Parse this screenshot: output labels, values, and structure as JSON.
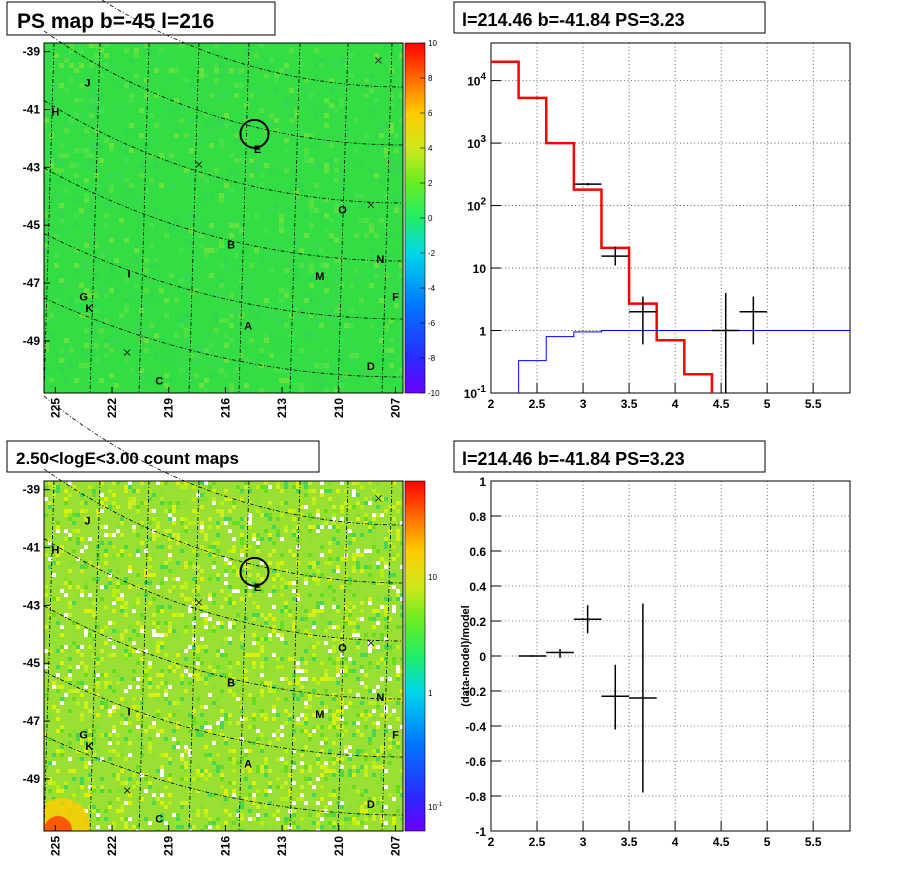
{
  "panels": {
    "ps_map": {
      "title": "PS map b=-45 l=216",
      "y_ticks": [
        "-39",
        "-41",
        "-43",
        "-45",
        "-47",
        "-49"
      ],
      "x_ticks": [
        "225",
        "222",
        "219",
        "216",
        "213",
        "210",
        "207"
      ],
      "colorbar_ticks": [
        "10",
        "8",
        "6",
        "4",
        "2",
        "0",
        "-2",
        "-4",
        "-6",
        "-8",
        "-10"
      ],
      "colors": {
        "background": "#33dd44",
        "ring": "#000000"
      }
    },
    "count_map": {
      "title": "2.50<logE<3.00 count maps",
      "y_ticks": [
        "-39",
        "-41",
        "-43",
        "-45",
        "-47",
        "-49"
      ],
      "x_ticks": [
        "225",
        "222",
        "219",
        "216",
        "213",
        "210",
        "207"
      ],
      "colorbar_ticks": [
        "10",
        "1",
        "10"
      ],
      "colorbar_tick_exp": "-1"
    },
    "spectrum": {
      "title": "l=214.46 b=-41.84 PS=3.23",
      "y_ticks": [
        {
          "base": "10",
          "exp": "4"
        },
        {
          "base": "10",
          "exp": "3"
        },
        {
          "base": "10",
          "exp": "2"
        },
        {
          "base": "10",
          "exp": ""
        },
        {
          "base": "1",
          "exp": ""
        },
        {
          "base": "10",
          "exp": "-1"
        }
      ],
      "x_ticks": [
        "2",
        "2.5",
        "3",
        "3.5",
        "4",
        "4.5",
        "5",
        "5.5"
      ]
    },
    "residual": {
      "title": "l=214.46 b=-41.84 PS=3.23",
      "ylabel": "(data-model)/model",
      "y_ticks": [
        "1",
        "0.8",
        "0.6",
        "0.4",
        "0.2",
        "0",
        "-0.2",
        "-0.4",
        "-0.6",
        "-0.8",
        "-1"
      ],
      "x_ticks": [
        "2",
        "2.5",
        "3",
        "3.5",
        "4",
        "4.5",
        "5",
        "5.5"
      ]
    }
  },
  "sky_labels": [
    {
      "text": "J",
      "l": 223.3,
      "b": -40.2
    },
    {
      "text": "H",
      "l": 225.0,
      "b": -41.2
    },
    {
      "text": "E",
      "l": 214.3,
      "b": -42.5
    },
    {
      "text": "O",
      "l": 209.8,
      "b": -44.6
    },
    {
      "text": "B",
      "l": 215.7,
      "b": -45.8
    },
    {
      "text": "N",
      "l": 207.8,
      "b": -46.3
    },
    {
      "text": "I",
      "l": 221.1,
      "b": -46.8
    },
    {
      "text": "M",
      "l": 211.0,
      "b": -46.9
    },
    {
      "text": "G",
      "l": 223.5,
      "b": -47.6
    },
    {
      "text": "F",
      "l": 207.0,
      "b": -47.6
    },
    {
      "text": "K",
      "l": 223.2,
      "b": -48.0
    },
    {
      "text": "A",
      "l": 214.8,
      "b": -48.6
    },
    {
      "text": "D",
      "l": 208.3,
      "b": -50.0
    },
    {
      "text": "C",
      "l": 219.5,
      "b": -50.5
    }
  ],
  "sky_crosses": [
    {
      "l": 207.9,
      "b": -39.3
    },
    {
      "l": 217.4,
      "b": -42.9
    },
    {
      "l": 208.3,
      "b": -44.3
    },
    {
      "l": 221.2,
      "b": -49.4
    }
  ],
  "source_ring": {
    "l": 214.46,
    "b": -41.84
  },
  "chart_data": [
    {
      "type": "heatmap",
      "title": "PS map b=-45 l=216",
      "xlabel": "",
      "ylabel": "",
      "xlim": [
        225.6,
        206.6
      ],
      "ylim": [
        -50.8,
        -38.7
      ],
      "colorbar_range": [
        -10,
        10
      ],
      "marked_source": {
        "l": 214.46,
        "b": -41.84
      }
    },
    {
      "type": "heatmap",
      "title": "2.50<logE<3.00 count maps",
      "xlabel": "",
      "ylabel": "",
      "xlim": [
        225.6,
        206.6
      ],
      "ylim": [
        -50.8,
        -38.7
      ],
      "colorbar_scale": "log",
      "colorbar_range": [
        0.06,
        70
      ],
      "marked_source": {
        "l": 214.46,
        "b": -41.84
      }
    },
    {
      "type": "line",
      "title": "l=214.46 b=-41.84 PS=3.23",
      "xlabel": "",
      "ylabel": "",
      "xlim": [
        2.0,
        5.9
      ],
      "ylim": [
        0.1,
        40000
      ],
      "yscale": "log",
      "grid": true,
      "series": [
        {
          "color": "#ff0000",
          "style": "histogram",
          "edges": [
            2.0,
            2.3,
            2.6,
            2.9,
            3.2,
            3.5,
            3.8,
            4.1,
            4.4,
            4.7,
            5.9
          ],
          "values": [
            20000,
            5300,
            1000,
            180,
            21,
            2.7,
            0.7,
            0.2,
            0.09,
            0.09
          ]
        },
        {
          "color": "#0000ff",
          "style": "histogram",
          "edges": [
            2.0,
            2.3,
            2.6,
            2.9,
            3.2,
            5.9
          ],
          "values": [
            0.09,
            0.33,
            0.8,
            0.95,
            1.0
          ]
        },
        {
          "color": "#000000",
          "style": "errorbar",
          "points": [
            {
              "x": 3.05,
              "y": 220,
              "xerr": 0.15,
              "ylo": 210,
              "yhi": 230
            },
            {
              "x": 3.35,
              "y": 15.5,
              "xerr": 0.15,
              "ylo": 11,
              "yhi": 22
            },
            {
              "x": 3.65,
              "y": 2.0,
              "xerr": 0.15,
              "ylo": 0.6,
              "yhi": 3.5
            },
            {
              "x": 4.55,
              "y": 1.0,
              "xerr": 0.15,
              "ylo": 0.09,
              "yhi": 4.0
            },
            {
              "x": 4.85,
              "y": 2.0,
              "xerr": 0.15,
              "ylo": 0.6,
              "yhi": 3.5
            }
          ]
        }
      ]
    },
    {
      "type": "scatter",
      "title": "l=214.46 b=-41.84 PS=3.23",
      "xlabel": "",
      "ylabel": "(data-model)/model",
      "xlim": [
        2.0,
        5.9
      ],
      "ylim": [
        -1,
        1
      ],
      "grid": true,
      "series": [
        {
          "color": "#000000",
          "style": "errorbar",
          "points": [
            {
              "x": 2.45,
              "y": 0.0,
              "xerr": 0.15,
              "ylo": -0.005,
              "yhi": 0.005
            },
            {
              "x": 2.75,
              "y": 0.02,
              "xerr": 0.15,
              "ylo": -0.01,
              "yhi": 0.04
            },
            {
              "x": 3.05,
              "y": 0.21,
              "xerr": 0.15,
              "ylo": 0.13,
              "yhi": 0.29
            },
            {
              "x": 3.35,
              "y": -0.23,
              "xerr": 0.15,
              "ylo": -0.42,
              "yhi": -0.05
            },
            {
              "x": 3.65,
              "y": -0.24,
              "xerr": 0.15,
              "ylo": -0.78,
              "yhi": 0.3
            }
          ]
        }
      ]
    }
  ]
}
